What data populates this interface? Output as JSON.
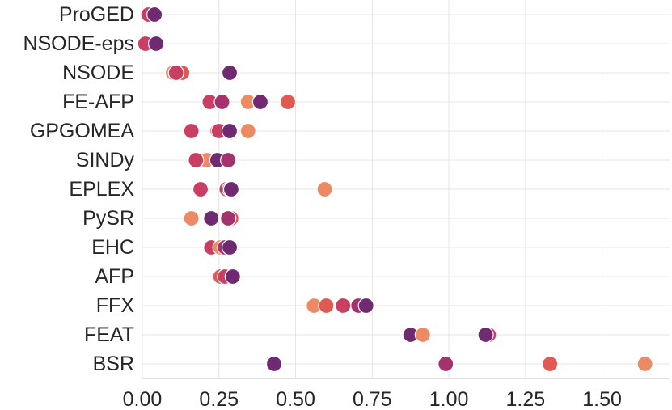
{
  "chart_data": {
    "type": "scatter",
    "title": "",
    "xlabel": "",
    "ylabel": "",
    "xlim": [
      0.0,
      1.72
    ],
    "x_ticks": [
      "0.00",
      "0.25",
      "0.50",
      "0.75",
      "1.00",
      "1.25",
      "1.50"
    ],
    "x_tick_values": [
      0.0,
      0.25,
      0.5,
      0.75,
      1.0,
      1.25,
      1.5
    ],
    "grid": true,
    "legend": "none",
    "categories": [
      "ProGED",
      "NSODE-eps",
      "NSODE",
      "FE-AFP",
      "GPGOMEA",
      "SINDy",
      "EPLEX",
      "PySR",
      "EHC",
      "AFP",
      "FFX",
      "FEAT",
      "BSR"
    ],
    "palette": [
      "#ec8a63",
      "#e05a53",
      "#c93e63",
      "#a3336d",
      "#6f2a72"
    ],
    "points": [
      {
        "category": "ProGED",
        "x": 0.02,
        "color_index": 2
      },
      {
        "category": "ProGED",
        "x": 0.04,
        "color_index": 4
      },
      {
        "category": "NSODE-eps",
        "x": 0.01,
        "color_index": 2
      },
      {
        "category": "NSODE-eps",
        "x": 0.045,
        "color_index": 4
      },
      {
        "category": "NSODE",
        "x": 0.1,
        "color_index": 0
      },
      {
        "category": "NSODE",
        "x": 0.13,
        "color_index": 1
      },
      {
        "category": "NSODE",
        "x": 0.11,
        "color_index": 2
      },
      {
        "category": "NSODE",
        "x": 0.285,
        "color_index": 4
      },
      {
        "category": "FE-AFP",
        "x": 0.22,
        "color_index": 2
      },
      {
        "category": "FE-AFP",
        "x": 0.26,
        "color_index": 3
      },
      {
        "category": "FE-AFP",
        "x": 0.345,
        "color_index": 0
      },
      {
        "category": "FE-AFP",
        "x": 0.385,
        "color_index": 4
      },
      {
        "category": "FE-AFP",
        "x": 0.475,
        "color_index": 1
      },
      {
        "category": "GPGOMEA",
        "x": 0.16,
        "color_index": 2
      },
      {
        "category": "GPGOMEA",
        "x": 0.245,
        "color_index": 1
      },
      {
        "category": "GPGOMEA",
        "x": 0.25,
        "color_index": 2
      },
      {
        "category": "GPGOMEA",
        "x": 0.285,
        "color_index": 4
      },
      {
        "category": "GPGOMEA",
        "x": 0.345,
        "color_index": 0
      },
      {
        "category": "SINDy",
        "x": 0.21,
        "color_index": 0
      },
      {
        "category": "SINDy",
        "x": 0.175,
        "color_index": 2
      },
      {
        "category": "SINDy",
        "x": 0.245,
        "color_index": 4
      },
      {
        "category": "SINDy",
        "x": 0.28,
        "color_index": 3
      },
      {
        "category": "EPLEX",
        "x": 0.19,
        "color_index": 2
      },
      {
        "category": "EPLEX",
        "x": 0.275,
        "color_index": 2
      },
      {
        "category": "EPLEX",
        "x": 0.285,
        "color_index": 3
      },
      {
        "category": "EPLEX",
        "x": 0.29,
        "color_index": 4
      },
      {
        "category": "EPLEX",
        "x": 0.595,
        "color_index": 0
      },
      {
        "category": "PySR",
        "x": 0.16,
        "color_index": 0
      },
      {
        "category": "PySR",
        "x": 0.225,
        "color_index": 4
      },
      {
        "category": "PySR",
        "x": 0.29,
        "color_index": 1
      },
      {
        "category": "PySR",
        "x": 0.28,
        "color_index": 3
      },
      {
        "category": "EHC",
        "x": 0.225,
        "color_index": 2
      },
      {
        "category": "EHC",
        "x": 0.255,
        "color_index": 0
      },
      {
        "category": "EHC",
        "x": 0.27,
        "color_index": 3
      },
      {
        "category": "EHC",
        "x": 0.285,
        "color_index": 4
      },
      {
        "category": "AFP",
        "x": 0.255,
        "color_index": 1
      },
      {
        "category": "AFP",
        "x": 0.27,
        "color_index": 2
      },
      {
        "category": "AFP",
        "x": 0.295,
        "color_index": 4
      },
      {
        "category": "FFX",
        "x": 0.56,
        "color_index": 0
      },
      {
        "category": "FFX",
        "x": 0.6,
        "color_index": 1
      },
      {
        "category": "FFX",
        "x": 0.655,
        "color_index": 2
      },
      {
        "category": "FFX",
        "x": 0.705,
        "color_index": 3
      },
      {
        "category": "FFX",
        "x": 0.73,
        "color_index": 4
      },
      {
        "category": "FEAT",
        "x": 0.875,
        "color_index": 4
      },
      {
        "category": "FEAT",
        "x": 0.915,
        "color_index": 0
      },
      {
        "category": "FEAT",
        "x": 1.13,
        "color_index": 2
      },
      {
        "category": "FEAT",
        "x": 1.12,
        "color_index": 4
      },
      {
        "category": "BSR",
        "x": 0.43,
        "color_index": 4
      },
      {
        "category": "BSR",
        "x": 0.99,
        "color_index": 3
      },
      {
        "category": "BSR",
        "x": 1.33,
        "color_index": 1
      },
      {
        "category": "BSR",
        "x": 1.64,
        "color_index": 0
      }
    ]
  }
}
